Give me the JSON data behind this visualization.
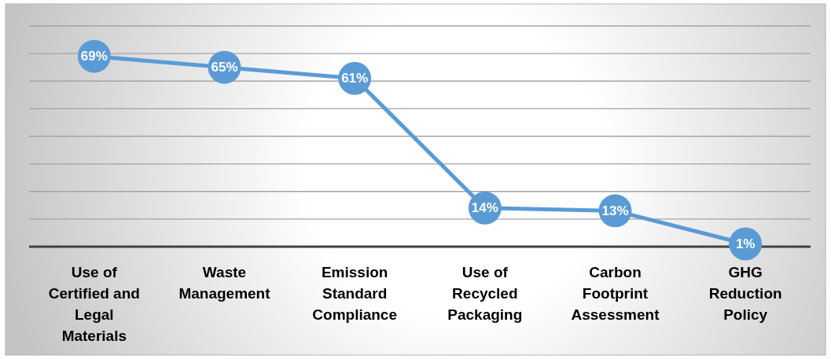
{
  "chart_data": {
    "type": "line",
    "categories": [
      "Use of Certified and Legal Materials",
      "Waste Management",
      "Emission Standard Compliance",
      "Use of Recycled Packaging",
      "Carbon Footprint Assessment",
      "GHG Reduction Policy"
    ],
    "values": [
      69,
      65,
      61,
      14,
      13,
      1
    ],
    "value_labels": [
      "69%",
      "65%",
      "61%",
      "14%",
      "13%",
      "1%"
    ],
    "color": "#5b9bd5",
    "ylim": [
      0,
      80
    ],
    "yticks": [
      0,
      10,
      20,
      30,
      40,
      50,
      60,
      70,
      80
    ],
    "grid": "y",
    "tick_labels": "x",
    "marker": "circle",
    "line_style": "solid"
  }
}
